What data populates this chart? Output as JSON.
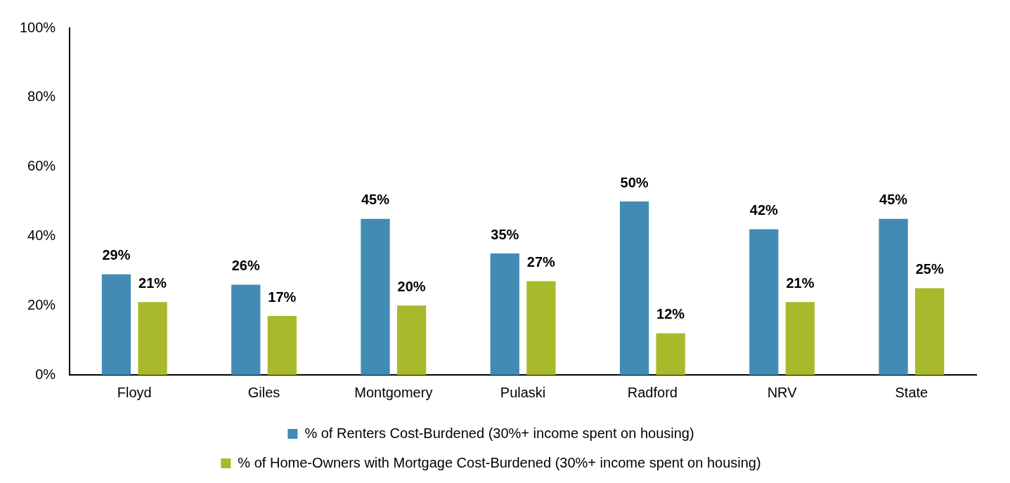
{
  "chart_data": {
    "type": "bar",
    "categories": [
      "Floyd",
      "Giles",
      "Montgomery",
      "Pulaski",
      "Radford",
      "NRV",
      "State"
    ],
    "series": [
      {
        "name": "% of Renters Cost-Burdened (30%+ income spent on housing)",
        "color": "#428bb5",
        "values": [
          29,
          26,
          45,
          35,
          50,
          42,
          45
        ],
        "value_labels": [
          "29%",
          "26%",
          "45%",
          "35%",
          "50%",
          "42%",
          "45%"
        ]
      },
      {
        "name": "% of Home-Owners with Mortgage Cost-Burdened (30%+ income spent on housing)",
        "color": "#a8b92b",
        "values": [
          21,
          17,
          20,
          27,
          12,
          21,
          25
        ],
        "value_labels": [
          "21%",
          "17%",
          "20%",
          "27%",
          "12%",
          "21%",
          "25%"
        ]
      }
    ],
    "ylim": [
      0,
      100
    ],
    "yticks": [
      {
        "value": 0,
        "label": "0%"
      },
      {
        "value": 20,
        "label": "20%"
      },
      {
        "value": 40,
        "label": "40%"
      },
      {
        "value": 60,
        "label": "60%"
      },
      {
        "value": 80,
        "label": "80%"
      },
      {
        "value": 100,
        "label": "100%"
      }
    ],
    "grid": false,
    "legend": "bottom"
  }
}
